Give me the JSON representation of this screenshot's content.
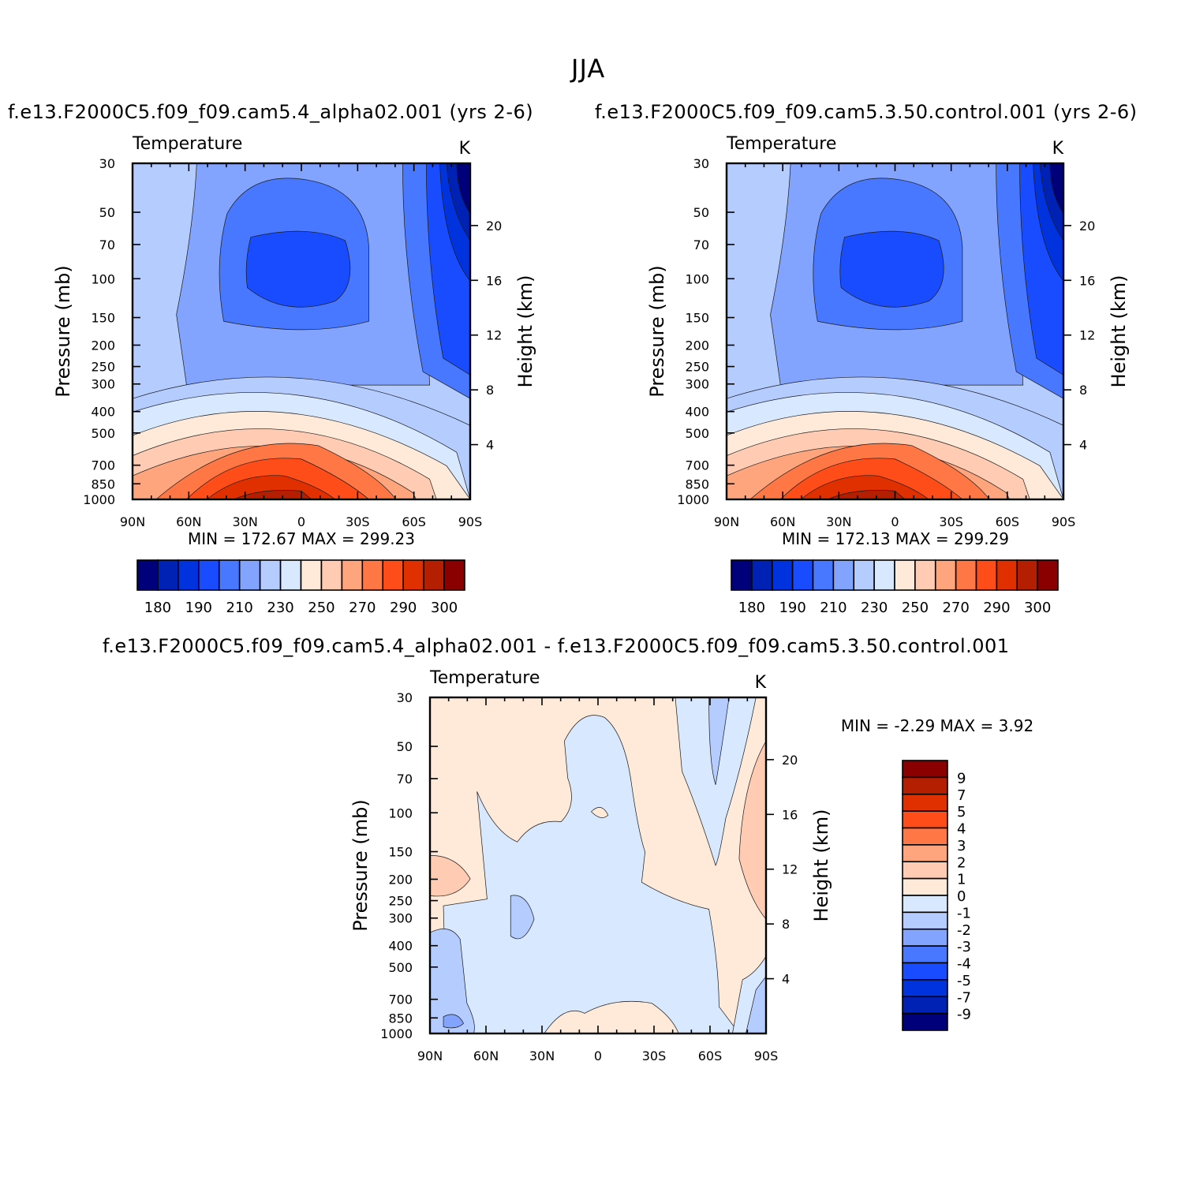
{
  "figure": {
    "title": "JJA",
    "left_case": "f.e13.F2000C5.f09_f09.cam5.4_alpha02.001  (yrs  2-6)",
    "right_case": "f.e13.F2000C5.f09_f09.cam5.3.50.control.001  (yrs  2-6)",
    "diff_case": "f.e13.F2000C5.f09_f09.cam5.4_alpha02.001  -  f.e13.F2000C5.f09_f09.cam5.3.50.control.001"
  },
  "colors": {
    "abs_scale": [
      "#00007a",
      "#0022b4",
      "#0033dd",
      "#1a4cff",
      "#4878ff",
      "#82a4ff",
      "#b4ccff",
      "#d8e8ff",
      "#ffe9d9",
      "#ffcbb3",
      "#ffa57d",
      "#ff7744",
      "#ff4d1a",
      "#e03000",
      "#b31f00",
      "#8a0000"
    ],
    "diff_scale": [
      "#8a0000",
      "#b31f00",
      "#e03000",
      "#ff4d1a",
      "#ff7744",
      "#ffa57d",
      "#ffcbb3",
      "#ffe9d9",
      "#d8e8ff",
      "#b4ccff",
      "#82a4ff",
      "#4878ff",
      "#1a4cff",
      "#0033dd",
      "#0022b4",
      "#00007a"
    ]
  },
  "chart_data": [
    {
      "type": "heatmap",
      "title": "Temperature",
      "units": "K",
      "ylabel": "Pressure  (mb)",
      "ylabel_right": "Height  (km)",
      "x_ticks": [
        "90N",
        "60N",
        "30N",
        "0",
        "30S",
        "60S",
        "90S"
      ],
      "y_ticks": [
        30,
        50,
        70,
        100,
        150,
        200,
        250,
        300,
        400,
        500,
        700,
        850,
        1000
      ],
      "y_ticks_right": [
        4,
        8,
        12,
        16,
        20
      ],
      "y_scale": "log",
      "stats": "MIN  =  172.67    MAX  =  299.23",
      "colorbar_labels": [
        "180",
        "190",
        "210",
        "230",
        "250",
        "270",
        "290",
        "300"
      ]
    },
    {
      "type": "heatmap",
      "title": "Temperature",
      "units": "K",
      "ylabel": "Pressure  (mb)",
      "ylabel_right": "Height  (km)",
      "x_ticks": [
        "90N",
        "60N",
        "30N",
        "0",
        "30S",
        "60S",
        "90S"
      ],
      "y_ticks": [
        30,
        50,
        70,
        100,
        150,
        200,
        250,
        300,
        400,
        500,
        700,
        850,
        1000
      ],
      "y_ticks_right": [
        4,
        8,
        12,
        16,
        20
      ],
      "y_scale": "log",
      "stats": "MIN  =  172.13    MAX  =  299.29",
      "colorbar_labels": [
        "180",
        "190",
        "210",
        "230",
        "250",
        "270",
        "290",
        "300"
      ]
    },
    {
      "type": "heatmap",
      "title": "Temperature",
      "units": "K",
      "ylabel": "Pressure  (mb)",
      "ylabel_right": "Height  (km)",
      "x_ticks": [
        "90N",
        "60N",
        "30N",
        "0",
        "30S",
        "60S",
        "90S"
      ],
      "y_ticks": [
        30,
        50,
        70,
        100,
        150,
        200,
        250,
        300,
        400,
        500,
        700,
        850,
        1000
      ],
      "y_ticks_right": [
        4,
        8,
        12,
        16,
        20
      ],
      "y_scale": "log",
      "stats": "MIN  =    -2.29    MAX  =      3.92",
      "colorbar_labels": [
        "9",
        "7",
        "5",
        "4",
        "3",
        "2",
        "1",
        "0",
        "-1",
        "-2",
        "-3",
        "-4",
        "-5",
        "-7",
        "-9"
      ]
    }
  ]
}
